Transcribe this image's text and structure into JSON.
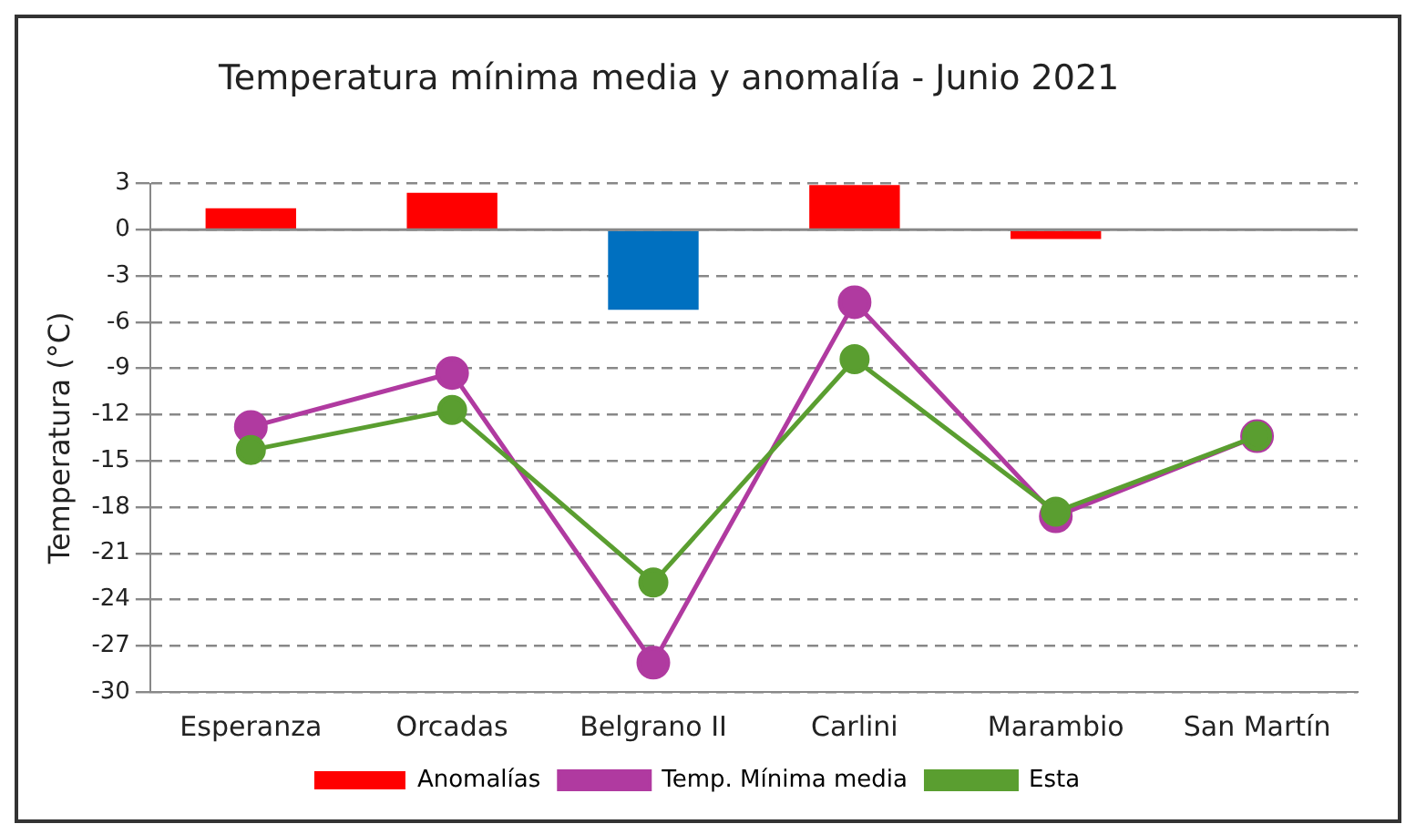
{
  "chart_data": {
    "type": "bar",
    "title": "Temperatura mínima media y anomalía - Junio 2021",
    "ylabel": "Temperatura (°C)",
    "categories": [
      "Esperanza",
      "Orcadas",
      "Belgrano II",
      "Carlini",
      "Marambio",
      "San Martín"
    ],
    "series": [
      {
        "name": "Anomalías",
        "color": "#ff0000",
        "colors": [
          "#ff0000",
          "#ff0000",
          "#0070c0",
          "#ff0000",
          "#ff0000",
          "#ff0000"
        ],
        "values": [
          1.4,
          2.4,
          -5.2,
          2.9,
          -0.6,
          null
        ]
      },
      {
        "name": "Temp. Mínima media",
        "type": "line",
        "color": "#b03aa0",
        "values": [
          -12.8,
          -9.3,
          -28.1,
          -4.7,
          -18.6,
          -13.4
        ]
      },
      {
        "name": "Esta",
        "type": "line",
        "color": "#5a9e30",
        "values": [
          -14.3,
          -11.7,
          -22.9,
          -8.4,
          -18.3,
          -13.4
        ]
      }
    ],
    "ylim": [
      -30,
      3
    ],
    "yticks": [
      3,
      0,
      -3,
      -6,
      -9,
      -12,
      -15,
      -18,
      -21,
      -24,
      -27,
      -30
    ],
    "grid": "y",
    "legend": "bottom",
    "marker": "circle",
    "line_style": "solid"
  }
}
